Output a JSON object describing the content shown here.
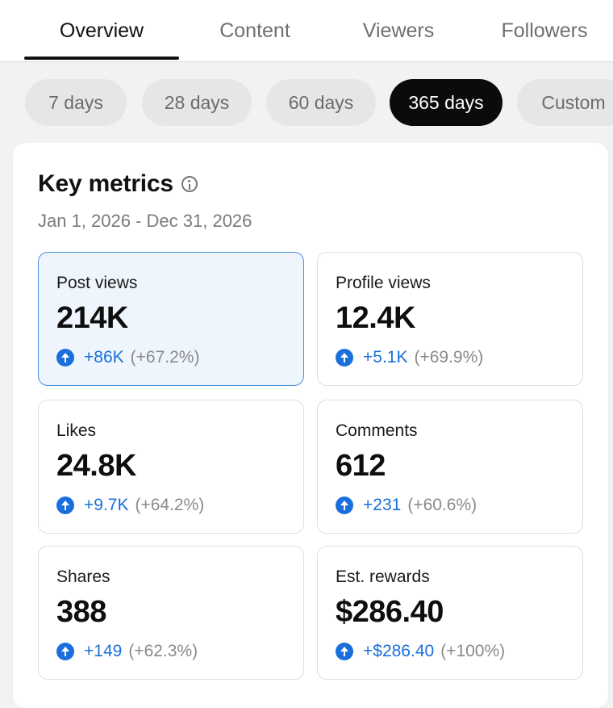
{
  "tabs": [
    {
      "label": "Overview",
      "active": true
    },
    {
      "label": "Content",
      "active": false
    },
    {
      "label": "Viewers",
      "active": false
    },
    {
      "label": "Followers",
      "active": false
    }
  ],
  "ranges": [
    {
      "label": "7 days",
      "active": false
    },
    {
      "label": "28 days",
      "active": false
    },
    {
      "label": "60 days",
      "active": false
    },
    {
      "label": "365 days",
      "active": true
    },
    {
      "label": "Custom",
      "active": false
    }
  ],
  "key_metrics": {
    "title": "Key metrics",
    "date_range": "Jan 1, 2026 - Dec 31, 2026"
  },
  "metrics": [
    {
      "label": "Post views",
      "value": "214K",
      "delta": "+86K",
      "pct": "(+67.2%)",
      "selected": true
    },
    {
      "label": "Profile views",
      "value": "12.4K",
      "delta": "+5.1K",
      "pct": "(+69.9%)",
      "selected": false
    },
    {
      "label": "Likes",
      "value": "24.8K",
      "delta": "+9.7K",
      "pct": "(+64.2%)",
      "selected": false
    },
    {
      "label": "Comments",
      "value": "612",
      "delta": "+231",
      "pct": "(+60.6%)",
      "selected": false
    },
    {
      "label": "Shares",
      "value": "388",
      "delta": "+149",
      "pct": "(+62.3%)",
      "selected": false
    },
    {
      "label": "Est. rewards",
      "value": "$286.40",
      "delta": "+$286.40",
      "pct": "(+100%)",
      "selected": false
    }
  ],
  "colors": {
    "accent_blue": "#1a6fdc",
    "selected_card_bg": "#eef5fd",
    "selected_card_border": "#4b8fdc",
    "active_chip_bg": "#0b0b0b"
  }
}
